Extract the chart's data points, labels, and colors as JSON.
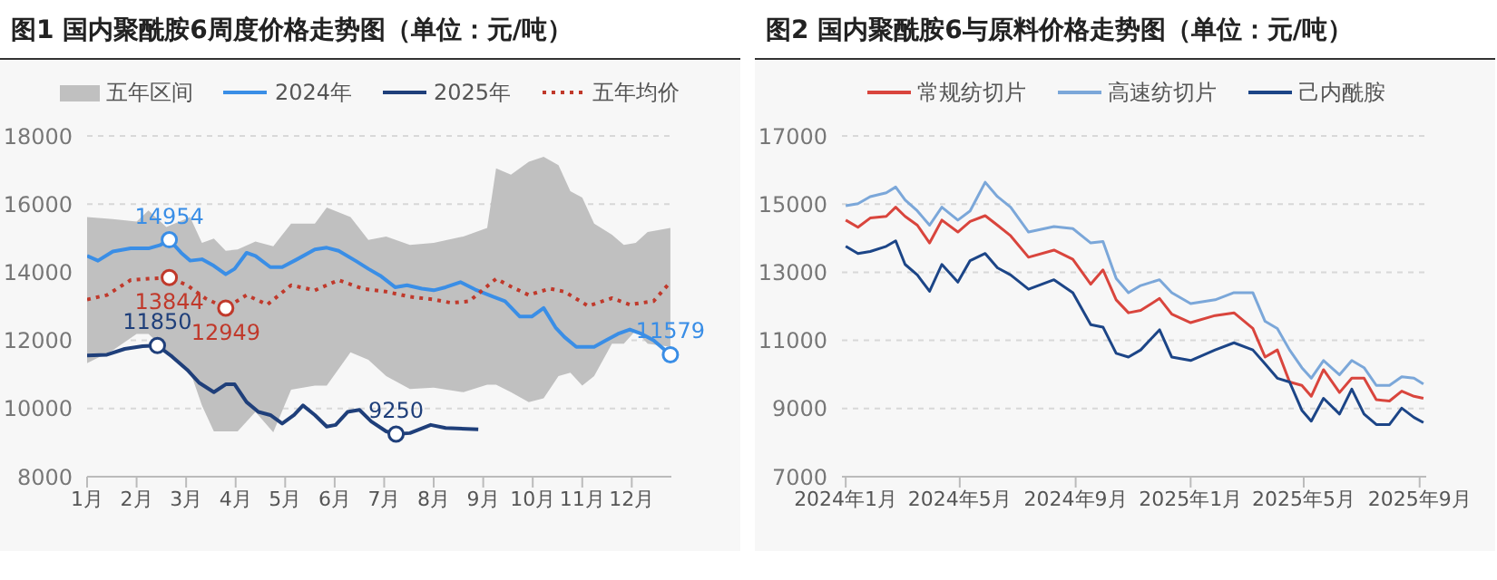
{
  "chart_data": [
    {
      "type": "line",
      "title": "图1 国内聚酰胺6周度价格走势图（单位：元/吨）",
      "legend": "top",
      "grid": "y",
      "xlim": [
        1,
        12.8
      ],
      "xticks": [
        {
          "value": 1,
          "label": "1月"
        },
        {
          "value": 2,
          "label": "2月"
        },
        {
          "value": 3,
          "label": "3月"
        },
        {
          "value": 4,
          "label": "4月"
        },
        {
          "value": 5,
          "label": "5月"
        },
        {
          "value": 6,
          "label": "6月"
        },
        {
          "value": 7,
          "label": "7月"
        },
        {
          "value": 8,
          "label": "8月"
        },
        {
          "value": 9,
          "label": "9月"
        },
        {
          "value": 10,
          "label": "10月"
        },
        {
          "value": 11,
          "label": "11月"
        },
        {
          "value": 12,
          "label": "12月"
        }
      ],
      "ylim": [
        8000,
        18000
      ],
      "yticks": [
        8000,
        10000,
        12000,
        14000,
        16000,
        18000
      ],
      "series": [
        {
          "name": "五年区间",
          "type": "area",
          "color": "#c0c0c0",
          "x": [
            1.0,
            1.52,
            2.0,
            2.24,
            2.6,
            3.08,
            3.32,
            3.56,
            3.8,
            4.04,
            4.4,
            4.76,
            5.12,
            5.6,
            5.84,
            6.32,
            6.68,
            7.04,
            7.52,
            8.0,
            8.6,
            9.08,
            9.26,
            9.56,
            9.92,
            10.22,
            10.52,
            10.76,
            11.0,
            11.24,
            11.6,
            11.84,
            12.08,
            12.32,
            12.78
          ],
          "values": [
            null,
            null,
            null,
            null,
            null,
            null,
            null,
            null,
            null,
            null,
            null,
            null,
            null,
            null,
            null,
            null,
            null,
            null,
            null,
            null,
            null,
            null,
            null,
            null,
            null,
            null,
            null,
            null,
            null,
            null,
            null,
            null,
            null,
            null,
            null
          ],
          "upper": [
            15620,
            15560,
            15490,
            15810,
            15330,
            15620,
            14860,
            14990,
            14630,
            14670,
            14900,
            14760,
            15430,
            15430,
            15900,
            15620,
            14950,
            15050,
            14800,
            14860,
            15050,
            15300,
            17050,
            16860,
            17240,
            17390,
            17140,
            16380,
            16190,
            15430,
            15100,
            14800,
            14860,
            15180,
            15300
          ],
          "lower": [
            11330,
            11710,
            12190,
            12190,
            11700,
            11100,
            10090,
            9330,
            9330,
            9330,
            9900,
            9300,
            10550,
            10670,
            10670,
            11650,
            11430,
            10950,
            10570,
            10610,
            10480,
            10700,
            10700,
            10480,
            10190,
            10300,
            10950,
            11050,
            10670,
            10950,
            11900,
            11900,
            12290,
            11900,
            11810
          ]
        },
        {
          "name": "2024年",
          "color": "#3a8ee6",
          "x": [
            1.0,
            1.22,
            1.52,
            1.88,
            2.24,
            2.48,
            2.66,
            2.9,
            3.08,
            3.32,
            3.56,
            3.8,
            3.98,
            4.22,
            4.4,
            4.7,
            4.94,
            5.24,
            5.6,
            5.84,
            6.08,
            6.44,
            6.68,
            6.92,
            7.22,
            7.46,
            7.76,
            8.0,
            8.24,
            8.54,
            8.84,
            9.2,
            9.44,
            9.74,
            9.98,
            10.22,
            10.46,
            10.64,
            10.88,
            11.24,
            11.48,
            11.72,
            11.96,
            12.2,
            12.44,
            12.78
          ],
          "values": [
            14480,
            14340,
            14610,
            14700,
            14700,
            14800,
            14954,
            14570,
            14340,
            14380,
            14190,
            13940,
            14100,
            14570,
            14480,
            14150,
            14150,
            14380,
            14670,
            14720,
            14630,
            14320,
            14100,
            13900,
            13560,
            13620,
            13520,
            13470,
            13560,
            13710,
            13490,
            13280,
            13150,
            12700,
            12700,
            12950,
            12380,
            12100,
            11810,
            11810,
            12000,
            12190,
            12320,
            12190,
            12000,
            11579
          ]
        },
        {
          "name": "2025年",
          "color": "#1f3f7a",
          "x": [
            1.0,
            1.4,
            1.76,
            2.12,
            2.42,
            2.72,
            3.02,
            3.26,
            3.56,
            3.8,
            3.98,
            4.22,
            4.46,
            4.7,
            4.94,
            5.18,
            5.36,
            5.6,
            5.84,
            6.02,
            6.26,
            6.5,
            6.74,
            7.04,
            7.24,
            7.52,
            7.94,
            8.24,
            8.9
          ],
          "values": [
            11560,
            11580,
            11750,
            11830,
            11850,
            11520,
            11140,
            10760,
            10480,
            10710,
            10710,
            10190,
            9900,
            9810,
            9560,
            9810,
            10090,
            9810,
            9470,
            9520,
            9900,
            9960,
            9620,
            9330,
            9250,
            9280,
            9520,
            9430,
            9390
          ]
        },
        {
          "name": "五年均价",
          "color": "#c0392b",
          "line_style": "dotted",
          "x": [
            1.0,
            1.4,
            1.88,
            2.24,
            2.66,
            3.02,
            3.38,
            3.8,
            4.22,
            4.64,
            5.12,
            5.6,
            6.08,
            6.56,
            7.04,
            7.52,
            8.0,
            8.36,
            8.72,
            9.26,
            9.56,
            9.92,
            10.34,
            10.64,
            11.12,
            11.6,
            11.96,
            12.44,
            12.78
          ],
          "values": [
            13200,
            13330,
            13770,
            13810,
            13844,
            13620,
            13240,
            12949,
            13330,
            13050,
            13620,
            13470,
            13770,
            13520,
            13430,
            13280,
            13200,
            13100,
            13150,
            13810,
            13580,
            13330,
            13520,
            13430,
            13010,
            13240,
            13050,
            13150,
            13710
          ]
        }
      ],
      "annotations": [
        {
          "text": "14954",
          "x": 2.66,
          "y": 14954
        },
        {
          "text": "13844",
          "x": 2.66,
          "y": 13844
        },
        {
          "text": "12949",
          "x": 3.8,
          "y": 12949
        },
        {
          "text": "11850",
          "x": 2.42,
          "y": 11850
        },
        {
          "text": "9250",
          "x": 7.24,
          "y": 9250
        },
        {
          "text": "11579",
          "x": 12.78,
          "y": 11579
        }
      ]
    },
    {
      "type": "line",
      "title": "图2  国内聚酰胺6与原料价格走势图（单位：元/吨）",
      "legend": "top",
      "grid": "y",
      "x": [
        "2024-01-01",
        "2024-01-14",
        "2024-01-27",
        "2024-02-13",
        "2024-02-23",
        "2024-03-04",
        "2024-03-17",
        "2024-03-30",
        "2024-04-12",
        "2024-04-29",
        "2024-05-12",
        "2024-05-28",
        "2024-06-10",
        "2024-06-24",
        "2024-07-13",
        "2024-08-09",
        "2024-08-29",
        "2024-09-17",
        "2024-09-30",
        "2024-10-14",
        "2024-10-27",
        "2024-11-09",
        "2024-11-29",
        "2024-12-12",
        "2025-01-01",
        "2025-01-27",
        "2025-02-16",
        "2025-03-08",
        "2025-03-21",
        "2025-04-03",
        "2025-04-16",
        "2025-04-29",
        "2025-05-09",
        "2025-05-22",
        "2025-06-08",
        "2025-06-21",
        "2025-07-04",
        "2025-07-17",
        "2025-07-31",
        "2025-08-13",
        "2025-08-26",
        "2025-09-05"
      ],
      "xlim": [
        "2023-12-28",
        "2025-09-08"
      ],
      "xticks": [
        {
          "value": "2024-01-01",
          "label": "2024年1月"
        },
        {
          "value": "2024-05-01",
          "label": "2024年5月"
        },
        {
          "value": "2024-09-01",
          "label": "2024年9月"
        },
        {
          "value": "2025-01-01",
          "label": "2025年1月"
        },
        {
          "value": "2025-05-01",
          "label": "2025年5月"
        },
        {
          "value": "2025-09-01",
          "label": "2025年9月"
        }
      ],
      "ylim": [
        7000,
        17000
      ],
      "yticks": [
        7000,
        9000,
        11000,
        13000,
        15000,
        17000
      ],
      "series": [
        {
          "name": "常规纺切片",
          "color": "#d9453d",
          "values": [
            14530,
            14320,
            14590,
            14640,
            14910,
            14640,
            14380,
            13860,
            14530,
            14180,
            14490,
            14660,
            14380,
            14070,
            13440,
            13650,
            13380,
            12650,
            13070,
            12190,
            11810,
            11880,
            12230,
            11770,
            11520,
            11730,
            11810,
            11350,
            10510,
            10720,
            9780,
            9680,
            9360,
            10140,
            9470,
            9890,
            9890,
            9260,
            9220,
            9510,
            9360,
            9300
          ]
        },
        {
          "name": "高速纺切片",
          "color": "#7ba7d9",
          "values": [
            14950,
            15010,
            15220,
            15330,
            15500,
            15120,
            14800,
            14380,
            14910,
            14530,
            14800,
            15640,
            15220,
            14910,
            14180,
            14340,
            14280,
            13860,
            13900,
            12820,
            12400,
            12610,
            12780,
            12400,
            12080,
            12190,
            12400,
            12400,
            11560,
            11350,
            10720,
            10200,
            9890,
            10410,
            9990,
            10410,
            10200,
            9680,
            9680,
            9930,
            9890,
            9720
          ]
        },
        {
          "name": "己内酰胺",
          "color": "#1c4587",
          "values": [
            13760,
            13550,
            13610,
            13760,
            13920,
            13230,
            12920,
            12440,
            13230,
            12710,
            13340,
            13550,
            13130,
            12920,
            12500,
            12780,
            12400,
            11460,
            11390,
            10620,
            10510,
            10720,
            11310,
            10510,
            10410,
            10720,
            10930,
            10720,
            10310,
            9890,
            9780,
            8950,
            8630,
            9300,
            8840,
            9570,
            8840,
            8530,
            8530,
            9010,
            8740,
            8590
          ]
        }
      ]
    }
  ]
}
